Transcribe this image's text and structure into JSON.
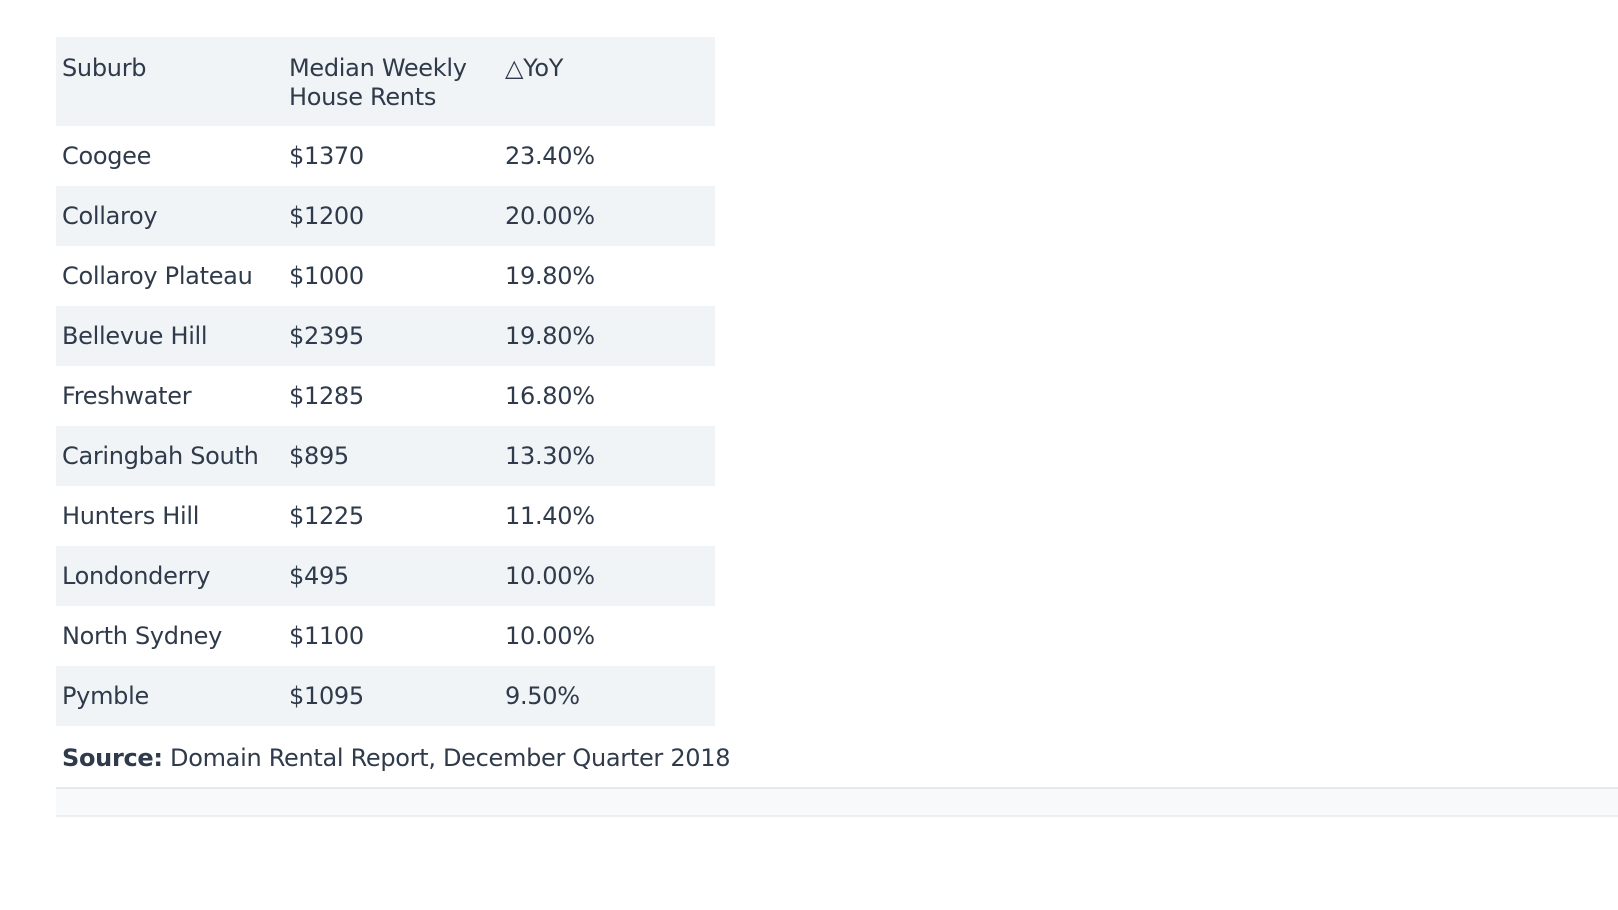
{
  "table": {
    "headers": [
      "Suburb",
      "Median Weekly House Rents",
      "△YoY"
    ],
    "rows": [
      {
        "suburb": "Coogee",
        "rent": "$1370",
        "yoy": "23.40%"
      },
      {
        "suburb": "Collaroy",
        "rent": "$1200",
        "yoy": "20.00%"
      },
      {
        "suburb": "Collaroy Plateau",
        "rent": "$1000",
        "yoy": "19.80%"
      },
      {
        "suburb": "Bellevue Hill",
        "rent": "$2395",
        "yoy": "19.80%"
      },
      {
        "suburb": "Freshwater",
        "rent": "$1285",
        "yoy": "16.80%"
      },
      {
        "suburb": "Caringbah South",
        "rent": "$895",
        "yoy": "13.30%"
      },
      {
        "suburb": "Hunters Hill",
        "rent": "$1225",
        "yoy": "11.40%"
      },
      {
        "suburb": "Londonderry",
        "rent": "$495",
        "yoy": "10.00%"
      },
      {
        "suburb": "North Sydney",
        "rent": "$1100",
        "yoy": "10.00%"
      },
      {
        "suburb": "Pymble",
        "rent": "$1095",
        "yoy": "9.50%"
      }
    ]
  },
  "source": {
    "label": "Source:",
    "text": " Domain Rental Report, December Quarter 2018"
  },
  "colors": {
    "text": "#2f3a4a",
    "stripe": "#f0f4f7",
    "footer_band": "#f8f9fa"
  }
}
